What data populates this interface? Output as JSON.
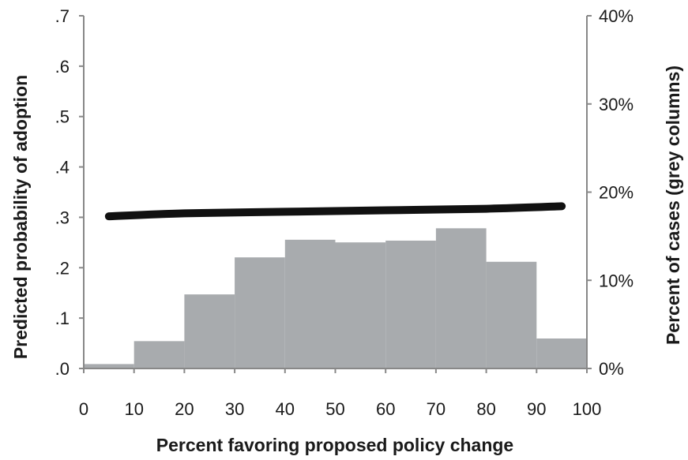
{
  "chart_data": {
    "type": "bar",
    "xlabel": "Percent favoring proposed policy change",
    "ylabel_left": "Predicted probability of adoption",
    "ylabel_right": "Percent of cases (grey columns)",
    "x_ticks": [
      "0",
      "10",
      "20",
      "30",
      "40",
      "50",
      "60",
      "70",
      "80",
      "90",
      "100"
    ],
    "y_left_ticks": [
      ".0",
      ".1",
      ".2",
      ".3",
      ".4",
      ".5",
      ".6",
      ".7"
    ],
    "y_right_ticks": [
      "0%",
      "10%",
      "20%",
      "30%",
      "40%"
    ],
    "xlim": [
      0,
      100
    ],
    "ylim_left": [
      0,
      0.7
    ],
    "ylim_right": [
      0,
      40
    ],
    "bar_color": "#a8abae",
    "line_color": "#111111",
    "histogram": {
      "bins": [
        [
          0,
          10
        ],
        [
          10,
          20
        ],
        [
          20,
          30
        ],
        [
          30,
          40
        ],
        [
          40,
          50
        ],
        [
          50,
          60
        ],
        [
          60,
          70
        ],
        [
          70,
          80
        ],
        [
          80,
          90
        ],
        [
          90,
          100
        ]
      ],
      "values": [
        0.5,
        3.1,
        8.4,
        12.6,
        14.6,
        14.3,
        14.5,
        15.9,
        12.1,
        3.4
      ]
    },
    "line": {
      "x": [
        5,
        20,
        40,
        60,
        80,
        95
      ],
      "y": [
        0.302,
        0.308,
        0.311,
        0.314,
        0.317,
        0.322
      ]
    }
  }
}
